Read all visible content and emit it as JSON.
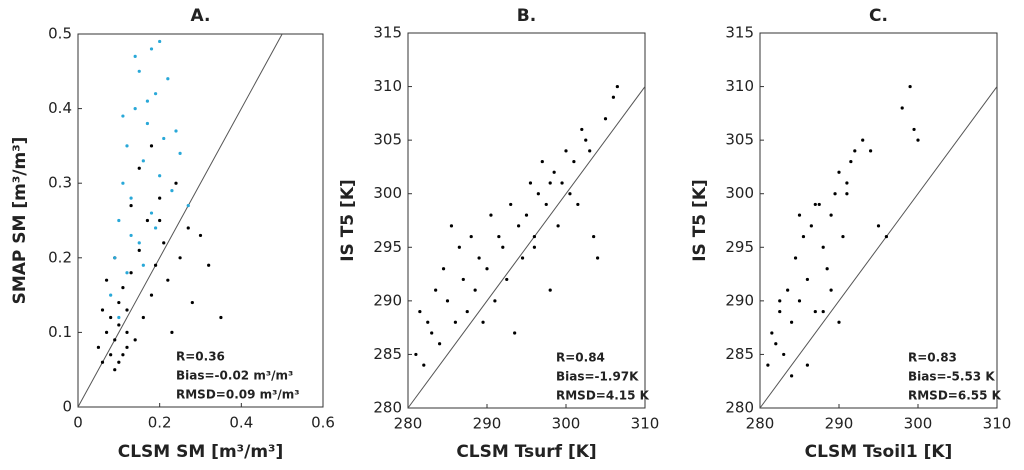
{
  "chart_data": [
    {
      "type": "scatter",
      "title": "A.",
      "xlabel": "CLSM SM [m³/m³]",
      "ylabel": "SMAP SM [m³/m³]",
      "xlim": [
        0,
        0.6
      ],
      "ylim": [
        0,
        0.5
      ],
      "xticks": [
        0,
        0.2,
        0.4,
        0.6
      ],
      "yticks": [
        0,
        0.1,
        0.2,
        0.3,
        0.4,
        0.5
      ],
      "annotations": [
        "R=0.36",
        "Bias=-0.02 m³/m³",
        "RMSD=0.09 m³/m³"
      ],
      "series": [
        {
          "color": "#000000",
          "x": [
            0.05,
            0.06,
            0.07,
            0.08,
            0.08,
            0.09,
            0.09,
            0.1,
            0.1,
            0.11,
            0.11,
            0.12,
            0.12,
            0.13,
            0.14,
            0.15,
            0.16,
            0.17,
            0.18,
            0.19,
            0.2,
            0.21,
            0.22,
            0.24,
            0.25,
            0.27,
            0.28,
            0.3,
            0.32,
            0.35,
            0.06,
            0.07,
            0.09,
            0.1,
            0.12,
            0.13,
            0.15,
            0.18,
            0.2,
            0.23
          ],
          "y": [
            0.08,
            0.06,
            0.1,
            0.07,
            0.12,
            0.05,
            0.09,
            0.11,
            0.14,
            0.07,
            0.16,
            0.1,
            0.13,
            0.18,
            0.09,
            0.21,
            0.12,
            0.25,
            0.15,
            0.19,
            0.28,
            0.22,
            0.17,
            0.3,
            0.2,
            0.24,
            0.14,
            0.23,
            0.19,
            0.12,
            0.13,
            0.17,
            0.2,
            0.06,
            0.08,
            0.27,
            0.32,
            0.35,
            0.25,
            0.1
          ]
        },
        {
          "color": "#29a8d8",
          "x": [
            0.08,
            0.09,
            0.1,
            0.11,
            0.12,
            0.12,
            0.13,
            0.14,
            0.15,
            0.15,
            0.16,
            0.17,
            0.18,
            0.18,
            0.19,
            0.2,
            0.21,
            0.22,
            0.23,
            0.25,
            0.1,
            0.13,
            0.14,
            0.16,
            0.17,
            0.19,
            0.2,
            0.24,
            0.27,
            0.11
          ],
          "y": [
            0.15,
            0.2,
            0.25,
            0.3,
            0.18,
            0.35,
            0.28,
            0.4,
            0.22,
            0.45,
            0.33,
            0.38,
            0.26,
            0.48,
            0.42,
            0.31,
            0.36,
            0.44,
            0.29,
            0.34,
            0.12,
            0.23,
            0.47,
            0.19,
            0.41,
            0.24,
            0.49,
            0.37,
            0.27,
            0.39
          ]
        }
      ]
    },
    {
      "type": "scatter",
      "title": "B.",
      "xlabel": "CLSM Tsurf [K]",
      "ylabel": "IS T5 [K]",
      "xlim": [
        280,
        310
      ],
      "ylim": [
        280,
        315
      ],
      "xticks": [
        280,
        290,
        300,
        310
      ],
      "yticks": [
        280,
        285,
        290,
        295,
        300,
        305,
        310,
        315
      ],
      "annotations": [
        "R=0.84",
        "Bias=-1.97K",
        "RMSD=4.15 K"
      ],
      "series": [
        {
          "color": "#000000",
          "x": [
            281,
            281.5,
            282,
            282.5,
            283,
            283.5,
            284,
            284.5,
            285,
            285.5,
            286,
            286.5,
            287,
            287.5,
            288,
            288.5,
            289,
            289.5,
            290,
            290.5,
            291,
            291.5,
            292,
            292.5,
            293,
            293.5,
            294,
            294.5,
            295,
            295.5,
            296,
            296.5,
            297,
            297.5,
            298,
            298.5,
            299,
            299.5,
            300,
            300.5,
            301,
            301.5,
            302,
            303,
            304,
            305,
            306,
            306.5,
            303.5,
            298,
            302.5,
            296
          ],
          "y": [
            285,
            289,
            284,
            288,
            287,
            291,
            286,
            293,
            290,
            297,
            288,
            295,
            292,
            289,
            296,
            291,
            294,
            288,
            293,
            298,
            290,
            296,
            295,
            292,
            299,
            287,
            297,
            294,
            298,
            301,
            296,
            300,
            303,
            299,
            291,
            302,
            297,
            301,
            304,
            300,
            303,
            299,
            306,
            304,
            294,
            307,
            309,
            310,
            296,
            301,
            305,
            295
          ]
        }
      ]
    },
    {
      "type": "scatter",
      "title": "C.",
      "xlabel": "CLSM Tsoil1 [K]",
      "ylabel": "IS T5 [K]",
      "xlim": [
        280,
        310
      ],
      "ylim": [
        280,
        315
      ],
      "xticks": [
        280,
        290,
        300,
        310
      ],
      "yticks": [
        280,
        285,
        290,
        295,
        300,
        305,
        310,
        315
      ],
      "annotations": [
        "R=0.83",
        "Bias=-5.53 K",
        "RMSD=6.55 K"
      ],
      "series": [
        {
          "color": "#000000",
          "x": [
            281,
            281.5,
            282,
            282.5,
            283,
            283.5,
            284,
            284.5,
            285,
            285.5,
            286,
            286.5,
            287,
            287.5,
            288,
            288.5,
            289,
            289.5,
            290,
            290.5,
            291,
            291.5,
            292,
            293,
            294,
            295,
            296,
            298,
            299,
            299.5,
            300,
            284,
            286,
            288,
            290,
            282.5,
            285,
            287,
            289,
            291
          ],
          "y": [
            284,
            287,
            286,
            289,
            285,
            291,
            288,
            294,
            290,
            296,
            292,
            297,
            289,
            299,
            295,
            293,
            298,
            300,
            302,
            296,
            301,
            303,
            304,
            305,
            304,
            297,
            296,
            308,
            310,
            306,
            305,
            283,
            284,
            289,
            288,
            290,
            298,
            299,
            291,
            300
          ]
        }
      ]
    }
  ]
}
